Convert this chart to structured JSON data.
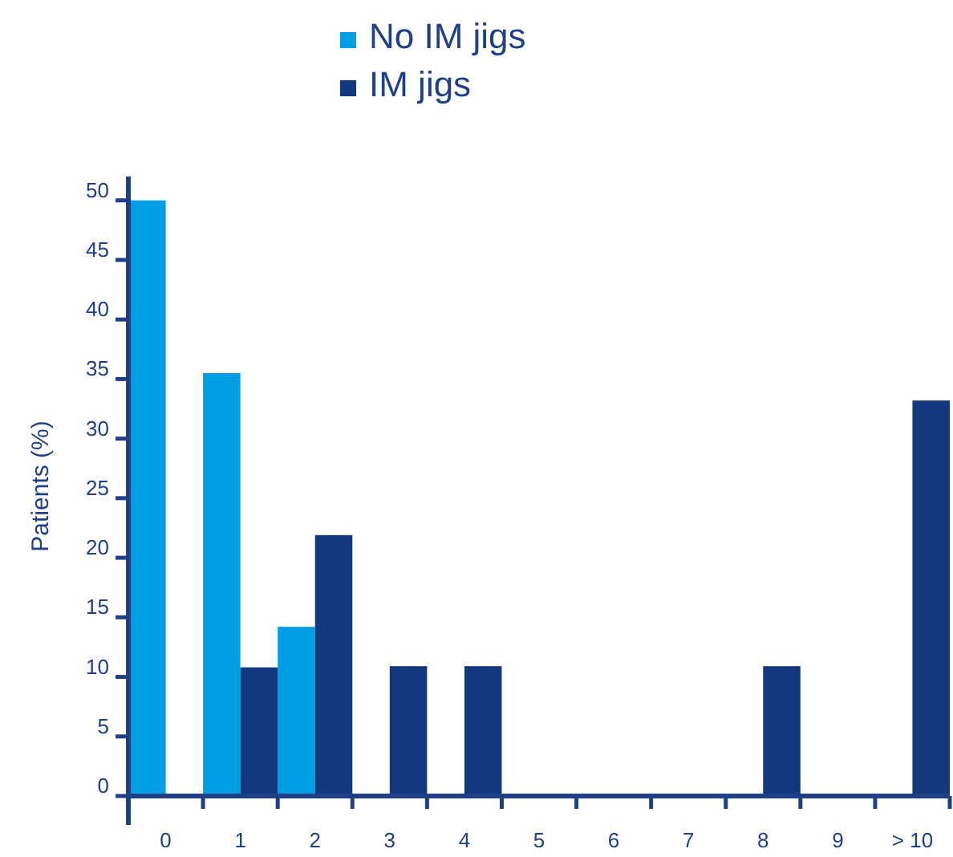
{
  "chart_data": {
    "type": "bar",
    "ylabel": "Patients (%)",
    "categories": [
      "0",
      "1",
      "2",
      "3",
      "4",
      "5",
      "6",
      "7",
      "8",
      "9",
      "> 10"
    ],
    "series": [
      {
        "name": "No IM jigs",
        "color": "#009fe3",
        "values": [
          50,
          35.5,
          14.2,
          0,
          0,
          0,
          0,
          0,
          0,
          0,
          0
        ]
      },
      {
        "name": "IM jigs",
        "color": "#14387f",
        "values": [
          0,
          10.8,
          21.9,
          10.9,
          10.9,
          0,
          0,
          0,
          10.9,
          0,
          33.2
        ]
      }
    ],
    "ylim": [
      0,
      52
    ],
    "yticks": [
      0,
      5,
      10,
      15,
      20,
      25,
      30,
      35,
      40,
      45,
      50
    ],
    "grid": false,
    "legend": "top"
  }
}
